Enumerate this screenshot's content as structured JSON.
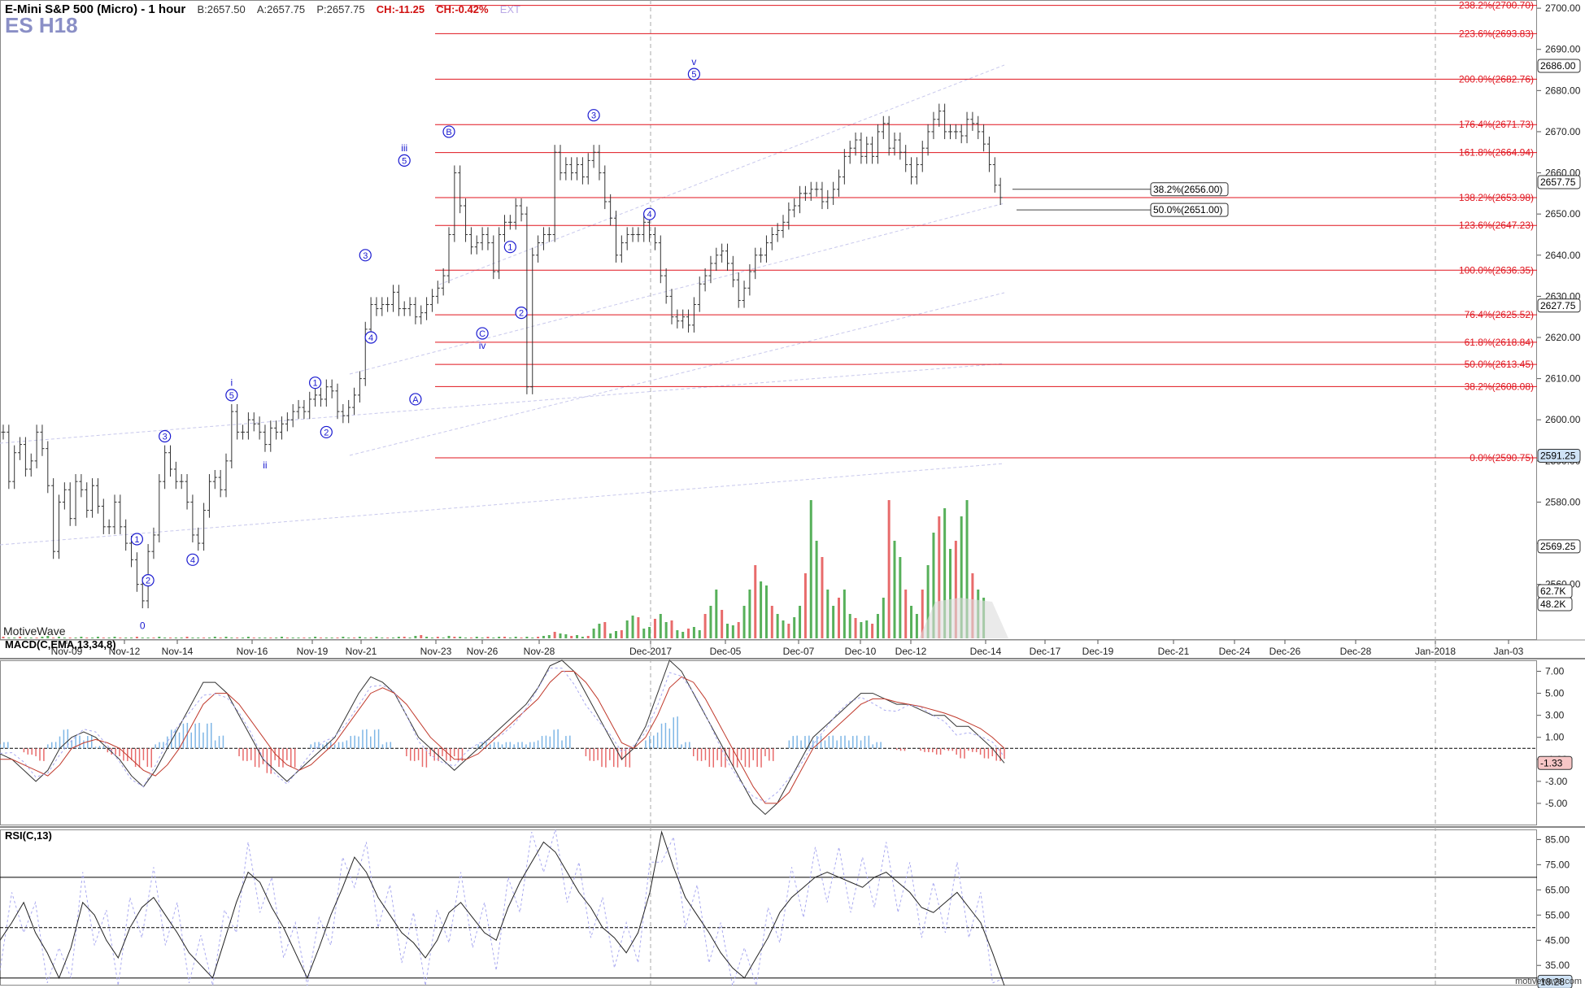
{
  "header": {
    "title": "E-Mini S&P 500 (Micro) - 1 hour",
    "bid": "B:2657.50",
    "ask": "A:2657.75",
    "price": "P:2657.75",
    "change": "CH:-11.25",
    "change_pct": "CH:-0.42%",
    "ext": "EXT",
    "symbol": "ES H18"
  },
  "brand": "MotiveWave",
  "footer": "motivewave.com",
  "colors": {
    "fib": "#e0141e",
    "wave": "#1a1ad0",
    "up": "#57b05a",
    "down": "#e86b6b",
    "macd_up": "#7eb6e6",
    "macd_down": "#e86b6b"
  },
  "chart_data": [
    {
      "type": "candlestick",
      "title": "E-Mini S&P 500 (Micro) - 1 hour",
      "x_ticks": [
        "Nov-09",
        "Nov-12",
        "Nov-14",
        "Nov-16",
        "Nov-19",
        "Nov-21",
        "Nov-23",
        "Nov-26",
        "Nov-28",
        "Dec-2017",
        "Dec-05",
        "Dec-07",
        "Dec-10",
        "Dec-12",
        "Dec-14",
        "Dec-17",
        "Dec-19",
        "Dec-21",
        "Dec-24",
        "Dec-26",
        "Dec-28",
        "Jan-2018",
        "Jan-03"
      ],
      "y_ticks": [
        2560,
        2570,
        2580,
        2590,
        2600,
        2610,
        2620,
        2630,
        2640,
        2650,
        2660,
        2670,
        2680,
        2690,
        2700
      ],
      "ylim": [
        2546.5,
        2702
      ],
      "price_path": [
        [
          0,
          2597
        ],
        [
          1,
          2585
        ],
        [
          2,
          2592
        ],
        [
          3,
          2594
        ],
        [
          4,
          2588
        ],
        [
          5,
          2590
        ],
        [
          6,
          2597
        ],
        [
          7,
          2593
        ],
        [
          8,
          2584
        ],
        [
          9,
          2568
        ],
        [
          10,
          2580
        ],
        [
          11,
          2583
        ],
        [
          12,
          2576
        ],
        [
          13,
          2585
        ],
        [
          14,
          2583
        ],
        [
          15,
          2578
        ],
        [
          16,
          2584
        ],
        [
          17,
          2579
        ],
        [
          18,
          2574
        ],
        [
          19,
          2574
        ],
        [
          20,
          2580
        ],
        [
          21,
          2574
        ],
        [
          22,
          2570
        ],
        [
          23,
          2566
        ],
        [
          24,
          2560
        ],
        [
          25,
          2556
        ],
        [
          26,
          2568
        ],
        [
          27,
          2572
        ],
        [
          28,
          2585
        ],
        [
          29,
          2592
        ],
        [
          30,
          2588
        ],
        [
          31,
          2585
        ],
        [
          32,
          2585
        ],
        [
          33,
          2580
        ],
        [
          34,
          2572
        ],
        [
          35,
          2570
        ],
        [
          36,
          2578
        ],
        [
          37,
          2585
        ],
        [
          38,
          2586
        ],
        [
          39,
          2583
        ],
        [
          40,
          2590
        ],
        [
          41,
          2602
        ],
        [
          42,
          2597
        ],
        [
          43,
          2597
        ],
        [
          44,
          2600
        ],
        [
          45,
          2599
        ],
        [
          46,
          2597
        ],
        [
          47,
          2594
        ],
        [
          48,
          2598
        ],
        [
          49,
          2597
        ],
        [
          50,
          2599
        ],
        [
          51,
          2600
        ],
        [
          52,
          2602
        ],
        [
          53,
          2603
        ],
        [
          54,
          2602
        ],
        [
          55,
          2605
        ],
        [
          56,
          2606
        ],
        [
          57,
          2605
        ],
        [
          58,
          2608
        ],
        [
          59,
          2607
        ],
        [
          60,
          2602
        ],
        [
          61,
          2601
        ],
        [
          62,
          2603
        ],
        [
          63,
          2606
        ],
        [
          64,
          2610
        ],
        [
          65,
          2622
        ],
        [
          66,
          2628
        ],
        [
          67,
          2627
        ],
        [
          68,
          2628
        ],
        [
          69,
          2628
        ],
        [
          70,
          2631
        ],
        [
          71,
          2627
        ],
        [
          72,
          2627
        ],
        [
          73,
          2628
        ],
        [
          74,
          2625
        ],
        [
          75,
          2626
        ],
        [
          76,
          2628
        ],
        [
          77,
          2630
        ],
        [
          78,
          2632
        ],
        [
          79,
          2635
        ],
        [
          80,
          2645
        ],
        [
          81,
          2660
        ],
        [
          82,
          2652
        ],
        [
          83,
          2645
        ],
        [
          84,
          2642
        ],
        [
          85,
          2643
        ],
        [
          86,
          2645
        ],
        [
          87,
          2643
        ],
        [
          88,
          2636
        ],
        [
          89,
          2645
        ],
        [
          90,
          2648
        ],
        [
          91,
          2648
        ],
        [
          92,
          2652
        ],
        [
          93,
          2650
        ],
        [
          94,
          2608
        ],
        [
          95,
          2640
        ],
        [
          96,
          2643
        ],
        [
          97,
          2645
        ],
        [
          98,
          2645
        ],
        [
          99,
          2665
        ],
        [
          100,
          2660
        ],
        [
          101,
          2662
        ],
        [
          102,
          2660
        ],
        [
          103,
          2662
        ],
        [
          104,
          2659
        ],
        [
          105,
          2663
        ],
        [
          106,
          2665
        ],
        [
          107,
          2660
        ],
        [
          108,
          2653
        ],
        [
          109,
          2649
        ],
        [
          110,
          2640
        ],
        [
          111,
          2643
        ],
        [
          112,
          2645
        ],
        [
          113,
          2645
        ],
        [
          114,
          2645
        ],
        [
          115,
          2648
        ],
        [
          116,
          2645
        ],
        [
          117,
          2643
        ],
        [
          118,
          2635
        ],
        [
          119,
          2630
        ],
        [
          120,
          2625
        ],
        [
          121,
          2624
        ],
        [
          122,
          2625
        ],
        [
          123,
          2623
        ],
        [
          124,
          2628
        ],
        [
          125,
          2633
        ],
        [
          126,
          2635
        ],
        [
          127,
          2638
        ],
        [
          128,
          2640
        ],
        [
          129,
          2641
        ],
        [
          130,
          2638
        ],
        [
          131,
          2634
        ],
        [
          132,
          2629
        ],
        [
          133,
          2632
        ],
        [
          134,
          2636
        ],
        [
          135,
          2640
        ],
        [
          136,
          2640
        ],
        [
          137,
          2643
        ],
        [
          138,
          2645
        ],
        [
          139,
          2646
        ],
        [
          140,
          2648
        ],
        [
          141,
          2651
        ],
        [
          142,
          2652
        ],
        [
          143,
          2655
        ],
        [
          144,
          2655
        ],
        [
          145,
          2656
        ],
        [
          146,
          2656
        ],
        [
          147,
          2653
        ],
        [
          148,
          2654
        ],
        [
          149,
          2656
        ],
        [
          150,
          2659
        ],
        [
          151,
          2664
        ],
        [
          152,
          2666
        ],
        [
          153,
          2668
        ],
        [
          154,
          2664
        ],
        [
          155,
          2667
        ],
        [
          156,
          2664
        ],
        [
          157,
          2670
        ],
        [
          158,
          2672
        ],
        [
          159,
          2666
        ],
        [
          160,
          2668
        ],
        [
          161,
          2665
        ],
        [
          162,
          2662
        ],
        [
          163,
          2659
        ],
        [
          164,
          2662
        ],
        [
          165,
          2666
        ],
        [
          166,
          2670
        ],
        [
          167,
          2673
        ],
        [
          168,
          2675
        ],
        [
          169,
          2670
        ],
        [
          170,
          2670
        ],
        [
          171,
          2670
        ],
        [
          172,
          2669
        ],
        [
          173,
          2673
        ],
        [
          174,
          2672
        ],
        [
          175,
          2670
        ],
        [
          176,
          2667
        ],
        [
          177,
          2662
        ],
        [
          178,
          2657
        ],
        [
          179,
          2654
        ]
      ],
      "fib_levels": [
        {
          "label": "238.2%(2700.70)",
          "price": 2700.7
        },
        {
          "label": "223.6%(2693.83)",
          "price": 2693.83
        },
        {
          "label": "200.0%(2682.76)",
          "price": 2682.76
        },
        {
          "label": "176.4%(2671.73)",
          "price": 2671.73
        },
        {
          "label": "161.8%(2664.94)",
          "price": 2664.94
        },
        {
          "label": "138.2%(2653.98)",
          "price": 2653.98
        },
        {
          "label": "123.6%(2647.23)",
          "price": 2647.23
        },
        {
          "label": "100.0%(2636.35)",
          "price": 2636.35
        },
        {
          "label": "76.4%(2625.52)",
          "price": 2625.52
        },
        {
          "label": "61.8%(2618.84)",
          "price": 2618.84
        },
        {
          "label": "50.0%(2613.45)",
          "price": 2613.45
        },
        {
          "label": "38.2%(2608.08)",
          "price": 2608.08
        },
        {
          "label": "0.0%(2590.75)",
          "price": 2590.75
        }
      ],
      "retracement_labels": [
        {
          "label": "38.2%(2656.00)",
          "price": 2656.0
        },
        {
          "label": "50.0%(2651.00)",
          "price": 2651.0
        }
      ],
      "price_tags": [
        {
          "label": "2686.00",
          "price": 2686.0
        },
        {
          "label": "2657.75",
          "price": 2657.75
        },
        {
          "label": "2627.75",
          "price": 2627.75
        },
        {
          "label": "2591.25",
          "price": 2591.25
        },
        {
          "label": "2569.25",
          "price": 2569.25
        }
      ],
      "volume_tags": [
        "62.7K",
        "48.2K"
      ],
      "wave_labels": [
        {
          "text": "0",
          "i": 25,
          "price": 2550,
          "circle": false
        },
        {
          "text": "1",
          "i": 24,
          "price": 2571,
          "circle": true
        },
        {
          "text": "2",
          "i": 26,
          "price": 2561,
          "circle": true
        },
        {
          "text": "3",
          "i": 29,
          "price": 2596,
          "circle": true
        },
        {
          "text": "4",
          "i": 34,
          "price": 2566,
          "circle": true
        },
        {
          "text": "5",
          "i": 41,
          "price": 2606,
          "circle": true
        },
        {
          "text": "i",
          "i": 41,
          "price": 2609,
          "circle": false
        },
        {
          "text": "ii",
          "i": 47,
          "price": 2589,
          "circle": false
        },
        {
          "text": "1",
          "i": 56,
          "price": 2609,
          "circle": true
        },
        {
          "text": "2",
          "i": 58,
          "price": 2597,
          "circle": true
        },
        {
          "text": "3",
          "i": 65,
          "price": 2640,
          "circle": true
        },
        {
          "text": "4",
          "i": 66,
          "price": 2620,
          "circle": true
        },
        {
          "text": "5",
          "i": 72,
          "price": 2663,
          "circle": true
        },
        {
          "text": "iii",
          "i": 72,
          "price": 2666,
          "circle": false
        },
        {
          "text": "A",
          "i": 74,
          "price": 2605,
          "circle": true
        },
        {
          "text": "B",
          "i": 80,
          "price": 2670,
          "circle": true
        },
        {
          "text": "C",
          "i": 86,
          "price": 2621,
          "circle": true
        },
        {
          "text": "iv",
          "i": 86,
          "price": 2618,
          "circle": false
        },
        {
          "text": "1",
          "i": 91,
          "price": 2642,
          "circle": true
        },
        {
          "text": "2",
          "i": 93,
          "price": 2626,
          "circle": true
        },
        {
          "text": "3",
          "i": 106,
          "price": 2674,
          "circle": true
        },
        {
          "text": "4",
          "i": 116,
          "price": 2650,
          "circle": true
        },
        {
          "text": "5",
          "i": 124,
          "price": 2684,
          "circle": true
        },
        {
          "text": "v",
          "i": 124,
          "price": 2687,
          "circle": false
        }
      ]
    },
    {
      "type": "line",
      "title": "MACD(C,EMA,13,34,8)",
      "y_ticks": [
        7.0,
        5.0,
        3.0,
        1.0,
        -1.0,
        -3.0,
        -5.0
      ],
      "ylim": [
        -7,
        8
      ],
      "current_value_label": "-1.33",
      "macd_path": [
        -0.5,
        -1,
        -2,
        -3,
        -2,
        0,
        1,
        1.5,
        1,
        0,
        -1,
        -2.5,
        -3.5,
        -2,
        0,
        2,
        4,
        6,
        6,
        5,
        3,
        1,
        -1,
        -2,
        -3,
        -2,
        -1,
        0,
        1,
        3,
        5,
        6.5,
        6,
        5,
        3,
        1,
        0,
        -1,
        -2,
        -1,
        0,
        1,
        2,
        3,
        4,
        5.5,
        7.5,
        8,
        7,
        5,
        3,
        1,
        -1,
        0,
        2,
        5,
        8,
        7,
        5,
        3,
        1,
        -1,
        -3,
        -5,
        -6,
        -5,
        -3,
        -1,
        1,
        2,
        3,
        4,
        5,
        5,
        4.5,
        4,
        4,
        3.5,
        3,
        3,
        2,
        2,
        1,
        0,
        -1.33
      ],
      "signal_path": [
        -1,
        -1,
        -1.5,
        -2,
        -2.5,
        -1.5,
        0,
        0.5,
        0.8,
        0.5,
        0,
        -1,
        -2,
        -2.5,
        -1.5,
        0,
        2,
        4,
        5,
        5,
        4,
        2.5,
        1,
        -0.5,
        -1.5,
        -2,
        -1.5,
        -0.5,
        0.5,
        2,
        3.5,
        5,
        5.5,
        5,
        4,
        2.5,
        1,
        0,
        -1,
        -1,
        -0.5,
        0.5,
        1.5,
        2.5,
        3.5,
        4.5,
        6,
        7,
        7,
        6,
        4.5,
        2.5,
        0.5,
        0,
        1,
        3,
        5.5,
        6.5,
        6,
        4.5,
        2.5,
        0.5,
        -1.5,
        -3.5,
        -5,
        -5,
        -4,
        -2,
        0,
        1,
        2,
        3,
        4,
        4.5,
        4.5,
        4.2,
        4,
        3.8,
        3.5,
        3.2,
        2.8,
        2.3,
        1.8,
        1,
        0
      ]
    },
    {
      "type": "line",
      "title": "RSI(C,13)",
      "y_ticks": [
        85.0,
        75.0,
        65.0,
        55.0,
        45.0,
        35.0
      ],
      "ylim": [
        27,
        89
      ],
      "reference_lines": [
        70,
        50,
        30
      ],
      "current_value_label": "18.28",
      "values": [
        45,
        52,
        60,
        48,
        40,
        30,
        42,
        60,
        55,
        45,
        38,
        50,
        58,
        62,
        55,
        48,
        40,
        35,
        30,
        45,
        60,
        72,
        68,
        58,
        50,
        40,
        30,
        42,
        55,
        66,
        78,
        72,
        62,
        55,
        48,
        44,
        38,
        45,
        56,
        60,
        54,
        48,
        45,
        58,
        68,
        76,
        84,
        80,
        72,
        64,
        58,
        50,
        46,
        40,
        48,
        64,
        88,
        74,
        62,
        55,
        48,
        40,
        34,
        30,
        38,
        46,
        56,
        62,
        66,
        70,
        72,
        70,
        68,
        66,
        70,
        72,
        68,
        64,
        58,
        56,
        60,
        64,
        58,
        52,
        40,
        18
      ]
    }
  ]
}
